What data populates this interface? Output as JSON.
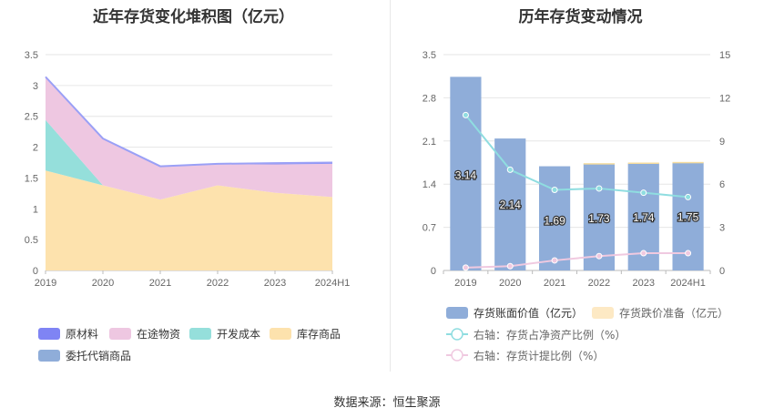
{
  "left_chart": {
    "title": "近年存货变化堆积图（亿元）",
    "chart_data": {
      "type": "area",
      "stacked": true,
      "categories": [
        "2019",
        "2020",
        "2021",
        "2022",
        "2023",
        "2024H1"
      ],
      "ylim": [
        0,
        3.5
      ],
      "yticks": [
        "0",
        "0.5",
        "1",
        "1.5",
        "2",
        "2.5",
        "3",
        "3.5"
      ],
      "series": [
        {
          "name": "库存商品",
          "color": "#fde2ad",
          "values": [
            1.62,
            1.38,
            1.15,
            1.38,
            1.26,
            1.19
          ]
        },
        {
          "name": "开发成本",
          "color": "#95dfdb",
          "values": [
            0.82,
            0.0,
            0.0,
            0.0,
            0.0,
            0.0
          ]
        },
        {
          "name": "在途物资",
          "color": "#eec7e1",
          "values": [
            0.69,
            0.75,
            0.53,
            0.34,
            0.46,
            0.54
          ]
        },
        {
          "name": "原材料",
          "color": "#7f84f4",
          "values": [
            0.01,
            0.01,
            0.01,
            0.01,
            0.02,
            0.02
          ]
        },
        {
          "name": "委托代销商品",
          "color": "#8fadd9",
          "values": [
            0,
            0,
            0,
            0,
            0,
            0
          ]
        }
      ],
      "legend_order": [
        "原材料",
        "在途物资",
        "开发成本",
        "库存商品",
        "委托代销商品"
      ]
    }
  },
  "right_chart": {
    "title": "历年存货变动情况",
    "chart_data": {
      "type": "bar",
      "categories": [
        "2019",
        "2020",
        "2021",
        "2022",
        "2023",
        "2024H1"
      ],
      "ylim_left": [
        0,
        3.5
      ],
      "yticks_left": [
        "0",
        "0.7",
        "1.4",
        "2.1",
        "2.8",
        "3.5"
      ],
      "ylim_right": [
        0,
        15
      ],
      "yticks_right": [
        "0",
        "3",
        "6",
        "9",
        "12",
        "15"
      ],
      "series": [
        {
          "name": "存货账面价值（亿元）",
          "type": "bar",
          "color": "#8fadd9",
          "values": [
            3.14,
            2.14,
            1.69,
            1.73,
            1.74,
            1.75
          ],
          "labels": [
            "3.14",
            "2.14",
            "1.69",
            "1.73",
            "1.74",
            "1.75"
          ]
        },
        {
          "name": "存货跌价准备（亿元）",
          "type": "bar",
          "color": "#fde9c4",
          "values": [
            0.0,
            0.0,
            0.0,
            0.01,
            0.01,
            0.01
          ]
        },
        {
          "name": "右轴：存货占净资产比例（%）",
          "type": "line",
          "color": "#8fdde0",
          "values": [
            10.8,
            7.0,
            5.6,
            5.7,
            5.4,
            5.1
          ]
        },
        {
          "name": "右轴：存货计提比例（%）",
          "type": "line",
          "color": "#f0c9e0",
          "values": [
            0.2,
            0.3,
            0.7,
            1.0,
            1.2,
            1.2
          ]
        }
      ]
    }
  },
  "source": "数据来源：恒生聚源"
}
